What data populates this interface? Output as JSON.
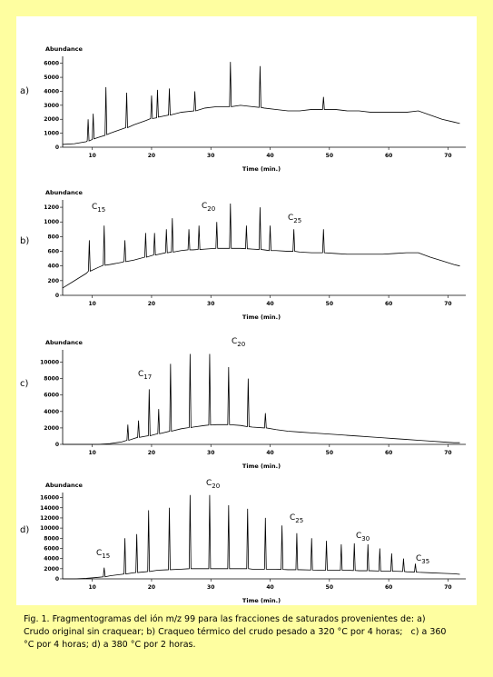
{
  "chart_data": [
    {
      "type": "line",
      "panel_label": "a)",
      "y_label": "Abundance",
      "x_label": "Time (min.)",
      "color": "#000000",
      "x": [
        5,
        7,
        9,
        9.15,
        9.3,
        9.45,
        10,
        10.15,
        10.3,
        11,
        12.15,
        12.3,
        12.45,
        13,
        15,
        15.65,
        15.8,
        15.95,
        17,
        19,
        19.85,
        20,
        20.15,
        20.85,
        21,
        21.15,
        22.85,
        23,
        23.15,
        25,
        27.15,
        27.3,
        27.45,
        29,
        31,
        33.15,
        33.3,
        33.45,
        35,
        37,
        38.15,
        38.3,
        38.45,
        39,
        41,
        43,
        45,
        47,
        48.85,
        49,
        49.15,
        51,
        53,
        55,
        57,
        59,
        61,
        63,
        65,
        67,
        69,
        71,
        72
      ],
      "values": [
        200,
        250,
        400,
        450,
        2000,
        450,
        550,
        2400,
        600,
        700,
        850,
        4300,
        900,
        1000,
        1300,
        1400,
        3900,
        1400,
        1600,
        1900,
        2050,
        3700,
        2050,
        2100,
        4100,
        2150,
        2300,
        4200,
        2300,
        2500,
        2600,
        4000,
        2600,
        2800,
        2900,
        2900,
        6100,
        2900,
        3000,
        2900,
        2850,
        5800,
        2850,
        2800,
        2700,
        2600,
        2600,
        2700,
        2700,
        3600,
        2700,
        2700,
        2600,
        2600,
        2500,
        2500,
        2500,
        2500,
        2600,
        2300,
        2000,
        1800,
        1700
      ],
      "xlim": [
        5,
        73
      ],
      "ylim": [
        0,
        6500
      ],
      "xticks": [
        10,
        20,
        30,
        40,
        50,
        60,
        70
      ],
      "yticks": [
        0,
        1000,
        2000,
        3000,
        4000,
        5000,
        6000
      ],
      "annotations": []
    },
    {
      "type": "line",
      "panel_label": "b)",
      "y_label": "Abundance",
      "x_label": "Time (min.)",
      "color": "#000000",
      "x": [
        5,
        7,
        9,
        9.35,
        9.5,
        9.65,
        11,
        11.85,
        12,
        12.15,
        13,
        15,
        15.35,
        15.5,
        15.65,
        17,
        18.85,
        19,
        19.15,
        20.35,
        20.5,
        20.65,
        22.35,
        22.5,
        22.65,
        23.35,
        23.5,
        23.65,
        25,
        26.15,
        26.3,
        26.45,
        27,
        27.85,
        28,
        28.15,
        29,
        30.85,
        31,
        31.15,
        33.15,
        33.3,
        33.45,
        35,
        35.85,
        36,
        36.15,
        37,
        38.15,
        38.3,
        38.45,
        39,
        39.85,
        40,
        40.15,
        41,
        43,
        43.85,
        44,
        44.15,
        45,
        47,
        48.85,
        49,
        49.15,
        51,
        53,
        55,
        57,
        59,
        61,
        63,
        65,
        67,
        69,
        71,
        72
      ],
      "values": [
        100,
        200,
        300,
        330,
        750,
        330,
        380,
        410,
        950,
        410,
        420,
        450,
        460,
        750,
        460,
        480,
        520,
        850,
        520,
        550,
        850,
        550,
        580,
        900,
        580,
        590,
        1050,
        590,
        610,
        620,
        900,
        620,
        620,
        625,
        950,
        625,
        630,
        640,
        1000,
        640,
        640,
        1250,
        640,
        640,
        635,
        950,
        635,
        630,
        625,
        1200,
        625,
        620,
        610,
        950,
        610,
        610,
        600,
        600,
        900,
        600,
        590,
        580,
        580,
        900,
        580,
        570,
        560,
        560,
        560,
        560,
        570,
        580,
        580,
        520,
        470,
        420,
        400
      ],
      "xlim": [
        5,
        73
      ],
      "ylim": [
        0,
        1300
      ],
      "xticks": [
        10,
        20,
        30,
        40,
        50,
        60,
        70
      ],
      "yticks": [
        0,
        200,
        400,
        600,
        800,
        1000,
        1200
      ],
      "annotations": [
        {
          "text": "C",
          "sub": "15"
        },
        {
          "text": "C",
          "sub": "20"
        },
        {
          "text": "C",
          "sub": "25"
        }
      ]
    },
    {
      "type": "line",
      "panel_label": "c)",
      "y_label": "Abundance",
      "x_label": "Time (min.)",
      "color": "#000000",
      "x": [
        5,
        7,
        9,
        11,
        13,
        15,
        15.85,
        16,
        16.15,
        17,
        17.65,
        17.8,
        17.95,
        19,
        19.45,
        19.6,
        19.75,
        21.05,
        21.2,
        21.35,
        23.05,
        23.2,
        23.35,
        25,
        26.35,
        26.5,
        26.65,
        27,
        29,
        29.65,
        29.8,
        29.95,
        31,
        32.85,
        33,
        33.15,
        35,
        36.15,
        36.3,
        36.45,
        37,
        39.05,
        39.2,
        39.35,
        41,
        43,
        45,
        47,
        49,
        51,
        53,
        55,
        57,
        59,
        61,
        63,
        65,
        67,
        69,
        71,
        72
      ],
      "values": [
        0,
        0,
        0,
        0,
        100,
        300,
        500,
        2400,
        500,
        700,
        850,
        2900,
        850,
        1000,
        1050,
        6700,
        1050,
        1300,
        4300,
        1300,
        1600,
        9800,
        1600,
        1900,
        2050,
        11000,
        2050,
        2100,
        2300,
        2350,
        11000,
        2350,
        2400,
        2400,
        9400,
        2400,
        2300,
        2150,
        8000,
        2150,
        2100,
        2000,
        3800,
        2000,
        1800,
        1600,
        1500,
        1400,
        1300,
        1200,
        1100,
        1000,
        900,
        800,
        700,
        600,
        500,
        400,
        300,
        200,
        200
      ],
      "xlim": [
        5,
        73
      ],
      "ylim": [
        0,
        11500
      ],
      "xticks": [
        10,
        20,
        30,
        40,
        50,
        60,
        70
      ],
      "yticks": [
        0,
        2000,
        4000,
        6000,
        8000,
        10000
      ],
      "annotations": [
        {
          "text": "C",
          "sub": "17"
        },
        {
          "text": "C",
          "sub": "20"
        }
      ]
    },
    {
      "type": "line",
      "panel_label": "d)",
      "y_label": "Abundance",
      "x_label": "Time (min.)",
      "color": "#000000",
      "x": [
        5,
        7,
        9,
        11,
        11.85,
        12,
        12.15,
        13,
        15,
        15.35,
        15.5,
        15.65,
        17,
        17.35,
        17.5,
        17.65,
        19,
        19.35,
        19.5,
        19.65,
        21,
        22.85,
        23,
        23.15,
        25,
        26.35,
        26.5,
        26.65,
        27,
        29,
        29.65,
        29.8,
        29.95,
        31,
        32.85,
        33,
        33.15,
        35,
        36.05,
        36.2,
        36.35,
        37,
        39.05,
        39.2,
        39.35,
        41,
        41.85,
        42,
        42.15,
        43,
        44.35,
        44.5,
        44.65,
        45,
        46.85,
        47,
        47.15,
        49,
        49.35,
        49.5,
        49.65,
        51,
        51.85,
        52,
        52.15,
        53,
        54.05,
        54.2,
        54.35,
        55,
        56.35,
        56.5,
        56.65,
        57,
        58.35,
        58.5,
        58.65,
        59,
        60.35,
        60.5,
        60.65,
        61,
        62.35,
        62.5,
        62.65,
        63,
        64.35,
        64.5,
        64.65,
        65,
        67,
        69,
        71,
        72
      ],
      "values": [
        0,
        0,
        100,
        300,
        400,
        2200,
        400,
        600,
        900,
        950,
        8000,
        950,
        1200,
        1250,
        8800,
        1250,
        1400,
        1450,
        13500,
        1450,
        1700,
        1800,
        14000,
        1800,
        1900,
        2000,
        16500,
        2000,
        2000,
        2000,
        2000,
        16500,
        2000,
        2000,
        2000,
        14500,
        2000,
        2000,
        2000,
        13800,
        2000,
        1900,
        1900,
        12000,
        1900,
        1900,
        1850,
        10500,
        1850,
        1800,
        1800,
        9000,
        1800,
        1800,
        1750,
        8000,
        1750,
        1700,
        1700,
        7500,
        1700,
        1700,
        1700,
        6800,
        1700,
        1700,
        1650,
        7000,
        1650,
        1600,
        1600,
        6800,
        1600,
        1600,
        1550,
        6000,
        1550,
        1500,
        1500,
        5000,
        1500,
        1500,
        1450,
        4000,
        1450,
        1400,
        1350,
        3000,
        1350,
        1300,
        1200,
        1100,
        1000,
        900
      ],
      "xlim": [
        5,
        73
      ],
      "ylim": [
        0,
        17000
      ],
      "xticks": [
        10,
        20,
        30,
        40,
        50,
        60,
        70
      ],
      "yticks": [
        0,
        2000,
        4000,
        6000,
        8000,
        10000,
        12000,
        14000,
        16000
      ],
      "annotations": [
        {
          "text": "C",
          "sub": "15"
        },
        {
          "text": "C",
          "sub": "20"
        },
        {
          "text": "C",
          "sub": "25"
        },
        {
          "text": "C",
          "sub": "30"
        },
        {
          "text": "C",
          "sub": "35"
        }
      ]
    }
  ],
  "caption_lines": [
    "Fig. 1. Fragmentogramas del ión m/z 99 para las fracciones de saturados provenientes de: a)",
    "Crudo original sin craquear; b) Craqueo térmico del crudo pesado a 320 °C por 4 horas;   c) a 360",
    "°C por 4 horas; d) a 380 °C por 2 horas."
  ]
}
